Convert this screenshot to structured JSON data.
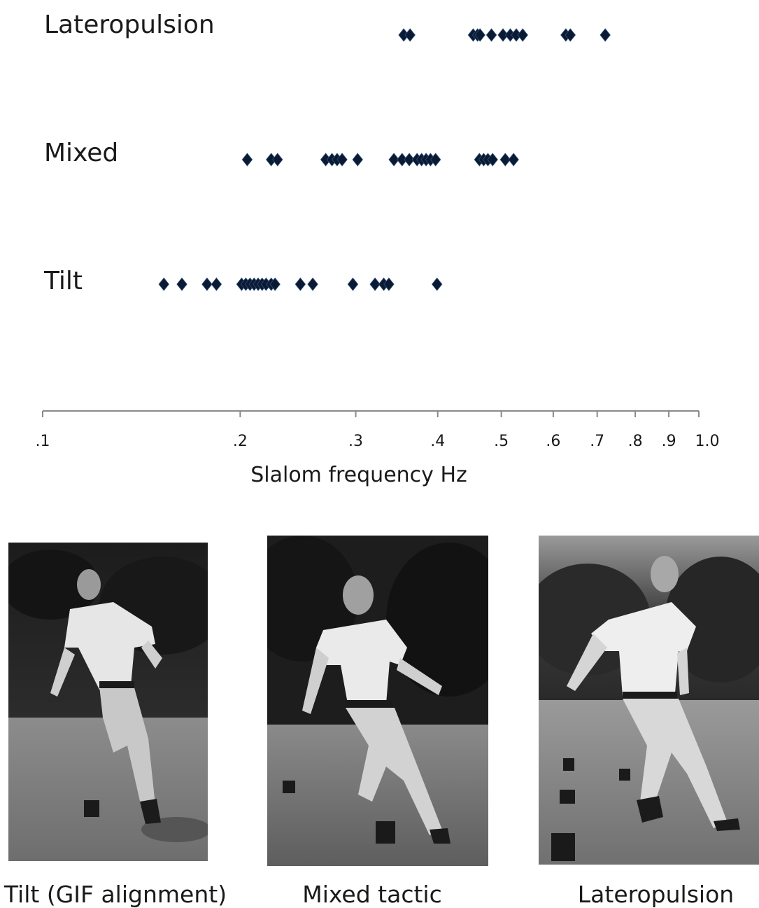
{
  "chart_data": {
    "type": "scatter",
    "x_scale": "log",
    "xlim": [
      0.1,
      1.0
    ],
    "xlabel": "Slalom frequency Hz",
    "ticks": [
      {
        "value": 0.1,
        "label": ".1"
      },
      {
        "value": 0.2,
        "label": ".2"
      },
      {
        "value": 0.3,
        "label": ".3"
      },
      {
        "value": 0.4,
        "label": ".4"
      },
      {
        "value": 0.5,
        "label": ".5"
      },
      {
        "value": 0.6,
        "label": ".6"
      },
      {
        "value": 0.7,
        "label": ".7"
      },
      {
        "value": 0.8,
        "label": ".8"
      },
      {
        "value": 0.9,
        "label": ".9"
      },
      {
        "value": 1.0,
        "label": "1.0"
      }
    ],
    "grid": false,
    "marker": "diamond",
    "marker_color": "#0b1a33",
    "series": [
      {
        "name": "Lateropulsion",
        "values": [
          0.355,
          0.363,
          0.453,
          0.46,
          0.464,
          0.483,
          0.503,
          0.516,
          0.527,
          0.539,
          0.627,
          0.637,
          0.72
        ]
      },
      {
        "name": "Mixed",
        "values": [
          0.205,
          0.223,
          0.228,
          0.27,
          0.276,
          0.281,
          0.286,
          0.302,
          0.343,
          0.353,
          0.362,
          0.372,
          0.378,
          0.384,
          0.39,
          0.397,
          0.463,
          0.47,
          0.477,
          0.485,
          0.507,
          0.522
        ]
      },
      {
        "name": "Tilt",
        "values": [
          0.153,
          0.163,
          0.178,
          0.184,
          0.201,
          0.204,
          0.207,
          0.21,
          0.213,
          0.216,
          0.219,
          0.223,
          0.226,
          0.247,
          0.258,
          0.297,
          0.321,
          0.331,
          0.337,
          0.399
        ]
      }
    ]
  },
  "photos": [
    {
      "caption": "Tilt (GIF alignment)"
    },
    {
      "caption": "Mixed tactic"
    },
    {
      "caption": "Lateropulsion"
    }
  ]
}
